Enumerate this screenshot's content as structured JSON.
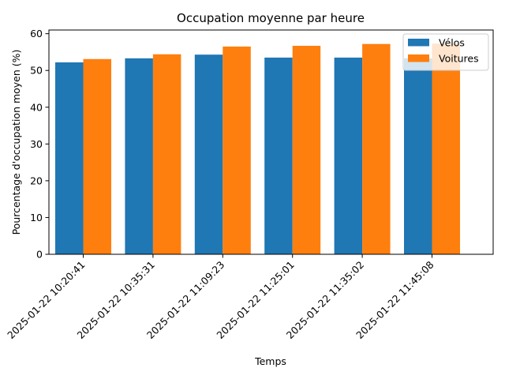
{
  "chart_data": {
    "type": "bar",
    "title": "Occupation moyenne par heure",
    "xlabel": "Temps",
    "ylabel": "Pourcentage d'occupation moyen (%)",
    "categories": [
      "2025-01-22 10:20:41",
      "2025-01-22 10:35:31",
      "2025-01-22 11:09:23",
      "2025-01-22 11:25:01",
      "2025-01-22 11:35:02",
      "2025-01-22 11:45:08"
    ],
    "series": [
      {
        "name": "Vélos",
        "color": "#1f77b4",
        "values": [
          52.2,
          53.3,
          54.3,
          53.5,
          53.5,
          53.3
        ]
      },
      {
        "name": "Voitures",
        "color": "#ff7f0e",
        "values": [
          53.1,
          54.4,
          56.5,
          56.7,
          57.2,
          57.3
        ]
      }
    ],
    "ylim": [
      0,
      61
    ],
    "yticks": [
      0,
      10,
      20,
      30,
      40,
      50,
      60
    ],
    "xtick_rotation_deg": 45,
    "grid": false,
    "legend": {
      "placement": "top-right"
    }
  }
}
